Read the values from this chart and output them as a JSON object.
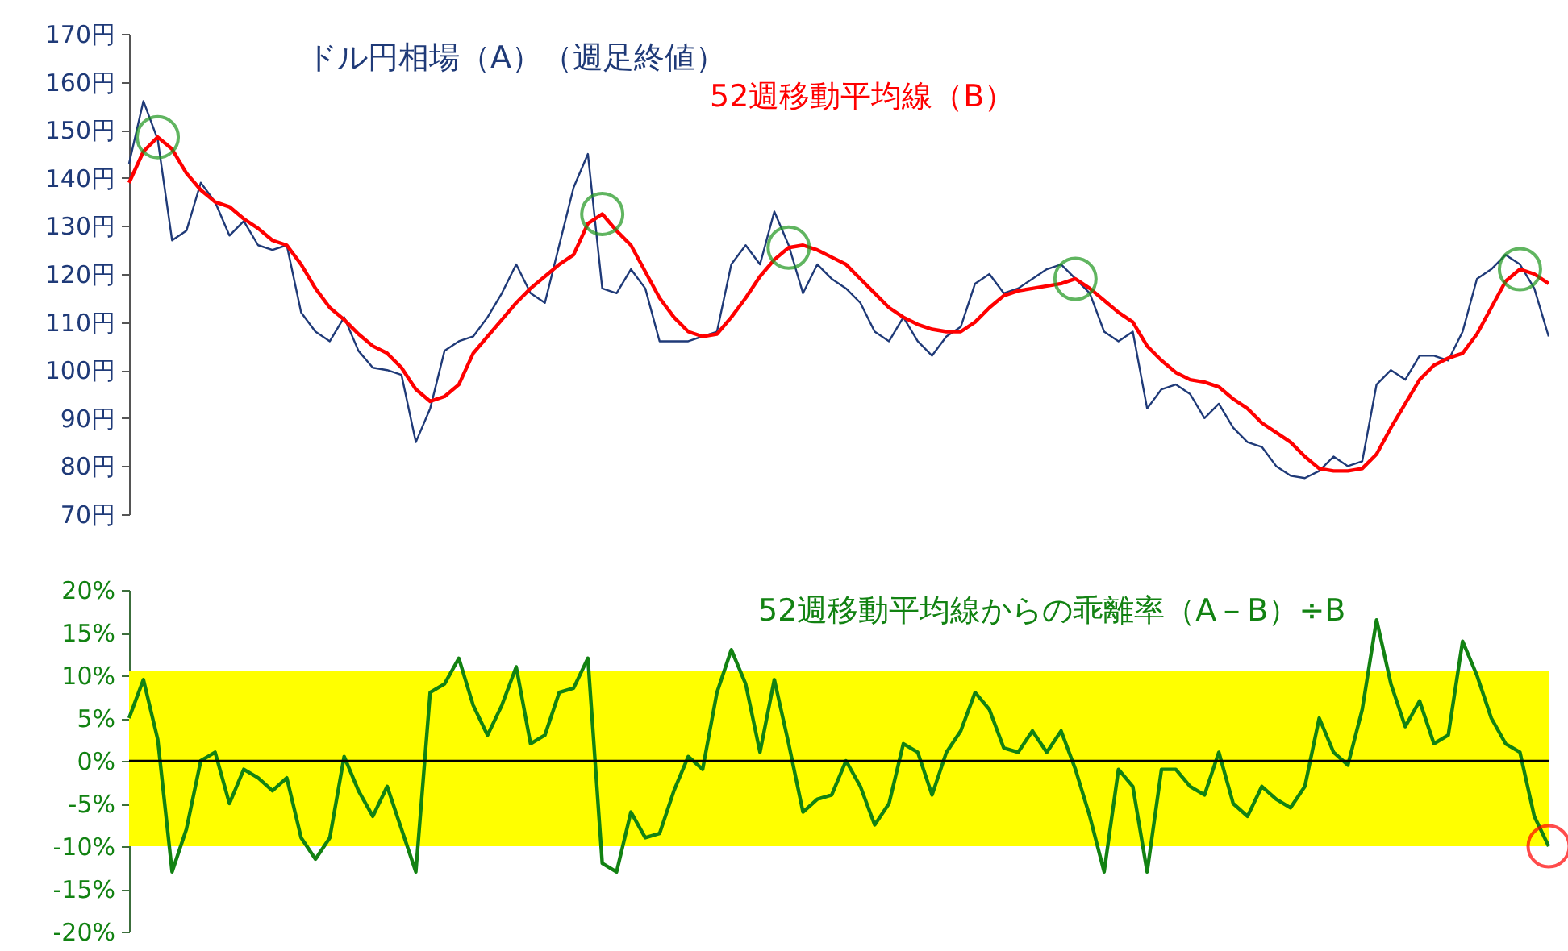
{
  "chart_data": [
    {
      "type": "line",
      "categories": [
        null,
        null,
        null,
        null,
        null,
        null,
        null,
        null,
        null,
        null,
        null,
        null,
        null,
        null,
        null,
        null,
        null,
        null,
        null,
        null,
        null,
        null,
        null,
        null,
        null,
        null,
        null,
        null,
        null,
        null,
        null,
        null,
        null,
        null,
        null,
        null,
        null,
        null,
        null,
        null,
        null,
        null,
        null,
        null,
        null,
        null,
        null,
        null,
        null,
        null,
        null,
        null,
        null,
        null,
        null,
        null,
        null,
        null,
        null,
        null,
        null,
        null,
        null,
        null,
        null,
        null,
        null,
        null,
        null,
        null,
        null,
        null,
        null,
        null,
        null,
        null,
        null,
        null,
        null,
        null,
        null,
        null,
        null,
        null,
        null,
        null,
        null,
        null,
        null,
        null,
        null,
        null,
        null,
        null,
        null,
        null,
        null,
        null,
        null,
        null
      ],
      "series": [
        {
          "name": "ドル円相場（A）（週足終値）",
          "color": "#1f3a78",
          "values": [
            143,
            156,
            148,
            127,
            129,
            139,
            135,
            128,
            131,
            126,
            125,
            126,
            112,
            108,
            106,
            111,
            104,
            100.5,
            100,
            99,
            85,
            92,
            104,
            106,
            107,
            111,
            116,
            122,
            116,
            114,
            126,
            138,
            145,
            117,
            116,
            121,
            117,
            106,
            106,
            106,
            107,
            108,
            122,
            126,
            122,
            133,
            126,
            116,
            122,
            119,
            117,
            114,
            108,
            106,
            111,
            106,
            103,
            107,
            109,
            118,
            120,
            116,
            117,
            119,
            121,
            122,
            119,
            116,
            108,
            106,
            108,
            92,
            96,
            97,
            95,
            90,
            93,
            88,
            85,
            84,
            80,
            78,
            77.5,
            79,
            82,
            80,
            81,
            97,
            100,
            98,
            103,
            103,
            102,
            108,
            119,
            121,
            124,
            122,
            117,
            107
          ]
        },
        {
          "name": "52週移動平均線（B）",
          "color": "#ff0000",
          "values": [
            139,
            145.5,
            148.5,
            146,
            141,
            137.5,
            135,
            134,
            131.5,
            129.5,
            127,
            126,
            122,
            117,
            113,
            110.5,
            107.5,
            105,
            103.5,
            100.5,
            96,
            93.5,
            94.5,
            97,
            103.5,
            107,
            110.5,
            114,
            117,
            119.5,
            122,
            124,
            130.5,
            132.5,
            129,
            126,
            120.5,
            115,
            111,
            108,
            107,
            107.5,
            111,
            115,
            119.5,
            123,
            125.5,
            126,
            125,
            123.5,
            122,
            119,
            116,
            113,
            111,
            109.5,
            108.5,
            108,
            108,
            110,
            113,
            115.5,
            116.5,
            117,
            117.5,
            118,
            119,
            117,
            114.5,
            112,
            110,
            105,
            102,
            99.5,
            98,
            97.5,
            96.5,
            94,
            92,
            89,
            87,
            85,
            82,
            79.5,
            79,
            79,
            79.5,
            82.5,
            88,
            93,
            98,
            101,
            102.5,
            103.5,
            107.5,
            113,
            118.5,
            121,
            120,
            118
          ]
        },
        {
          "type": "scatter",
          "color": "#1e961e",
          "values": [
            null,
            null,
            148.5,
            null,
            null,
            null,
            null,
            null,
            null,
            null,
            null,
            null,
            null,
            null,
            null,
            null,
            null,
            null,
            null,
            null,
            null,
            null,
            null,
            null,
            null,
            null,
            null,
            null,
            null,
            null,
            null,
            null,
            null,
            132.5,
            null,
            null,
            null,
            null,
            null,
            null,
            null,
            null,
            null,
            null,
            null,
            null,
            125.5,
            null,
            null,
            null,
            null,
            null,
            null,
            null,
            null,
            null,
            null,
            null,
            null,
            null,
            null,
            null,
            null,
            null,
            null,
            null,
            119,
            null,
            null,
            null,
            null,
            null,
            null,
            null,
            null,
            null,
            null,
            null,
            null,
            null,
            null,
            null,
            null,
            null,
            null,
            null,
            null,
            null,
            null,
            null,
            null,
            null,
            null,
            null,
            null,
            null,
            null,
            121,
            null,
            null
          ]
        }
      ],
      "ylim": [
        70,
        170
      ],
      "yticks": [
        {
          "value": 70,
          "label": "70円"
        },
        {
          "value": 80,
          "label": "80円"
        },
        {
          "value": 90,
          "label": "90円"
        },
        {
          "value": 100,
          "label": "100円"
        },
        {
          "value": 110,
          "label": "110円"
        },
        {
          "value": 120,
          "label": "120円"
        },
        {
          "value": 130,
          "label": "130円"
        },
        {
          "value": 140,
          "label": "140円"
        },
        {
          "value": 150,
          "label": "150円"
        },
        {
          "value": 160,
          "label": "160円"
        },
        {
          "value": 170,
          "label": "170円"
        }
      ]
    },
    {
      "type": "line",
      "categories": [
        null,
        null,
        null,
        null,
        null,
        null,
        null,
        null,
        null,
        null,
        null,
        null,
        null,
        null,
        null,
        null,
        null,
        null,
        null,
        null,
        null,
        null,
        null,
        null,
        null,
        null,
        null,
        null,
        null,
        null,
        null,
        null,
        null,
        null,
        null,
        null,
        null,
        null,
        null,
        null,
        null,
        null,
        null,
        null,
        null,
        null,
        null,
        null,
        null,
        null,
        null,
        null,
        null,
        null,
        null,
        null,
        null,
        null,
        null,
        null,
        null,
        null,
        null,
        null,
        null,
        null,
        null,
        null,
        null,
        null,
        null,
        null,
        null,
        null,
        null,
        null,
        null,
        null,
        null,
        null,
        null,
        null,
        null,
        null,
        null,
        null,
        null,
        null,
        null,
        null,
        null,
        null,
        null,
        null,
        null,
        null,
        null,
        null,
        null,
        null
      ],
      "series": [
        {
          "name": "52週移動平均線からの乖離率（A－B）÷B",
          "color": "#128212",
          "values": [
            5,
            9.5,
            2.5,
            -13,
            -8,
            0,
            1,
            -5,
            -1,
            -2,
            -3.5,
            -2,
            -9,
            -11.5,
            -9,
            0.5,
            -3.5,
            -6.5,
            -3,
            -8,
            -13,
            8,
            9,
            12,
            6.5,
            3,
            6.5,
            11,
            2,
            3,
            8,
            8.5,
            12,
            -12,
            -13,
            -6,
            -9,
            -8.5,
            -3.5,
            0.5,
            -1,
            8,
            13,
            9,
            1,
            9.5,
            2,
            -6,
            -4.5,
            -4,
            0,
            -3,
            -7.5,
            -5,
            2,
            1,
            -4,
            1,
            3.5,
            8,
            6,
            1.5,
            1,
            3.5,
            1,
            3.5,
            -1,
            -6.5,
            -13,
            -1,
            -3,
            -13,
            -1,
            -1,
            -3,
            -4,
            1,
            -5,
            -6.5,
            -3,
            -4.5,
            -5.5,
            -3,
            5,
            1,
            -0.5,
            6,
            16.5,
            9,
            4,
            7,
            2,
            3,
            14,
            10,
            5,
            2,
            1,
            -6.5,
            -10
          ]
        },
        {
          "type": "scatter",
          "color": "#ff0000",
          "values": [
            null,
            null,
            null,
            null,
            null,
            null,
            null,
            null,
            null,
            null,
            null,
            null,
            null,
            null,
            null,
            null,
            null,
            null,
            null,
            null,
            null,
            null,
            null,
            null,
            null,
            null,
            null,
            null,
            null,
            null,
            null,
            null,
            null,
            null,
            null,
            null,
            null,
            null,
            null,
            null,
            null,
            null,
            null,
            null,
            null,
            null,
            null,
            null,
            null,
            null,
            null,
            null,
            null,
            null,
            null,
            null,
            null,
            null,
            null,
            null,
            null,
            null,
            null,
            null,
            null,
            null,
            null,
            null,
            null,
            null,
            null,
            null,
            null,
            null,
            null,
            null,
            null,
            null,
            null,
            null,
            null,
            null,
            null,
            null,
            null,
            null,
            null,
            null,
            null,
            null,
            null,
            null,
            null,
            null,
            null,
            null,
            null,
            null,
            null,
            -10
          ]
        }
      ],
      "ylim": [
        -20,
        20
      ],
      "yticks": [
        {
          "value": -20,
          "label": "-20%"
        },
        {
          "value": -15,
          "label": "-15%"
        },
        {
          "value": -10,
          "label": "-10%"
        },
        {
          "value": -5,
          "label": "-5%"
        },
        {
          "value": 0,
          "label": "0%"
        },
        {
          "value": 5,
          "label": "5%"
        },
        {
          "value": 10,
          "label": "10%"
        },
        {
          "value": 15,
          "label": "15%"
        },
        {
          "value": 20,
          "label": "20%"
        }
      ],
      "bands": [
        {
          "axis": "y",
          "from": -10,
          "to": 10.5,
          "color": "#ffff00"
        }
      ],
      "ref_lines": [
        {
          "axis": "y",
          "value": 0,
          "color": "#000000"
        }
      ]
    }
  ]
}
